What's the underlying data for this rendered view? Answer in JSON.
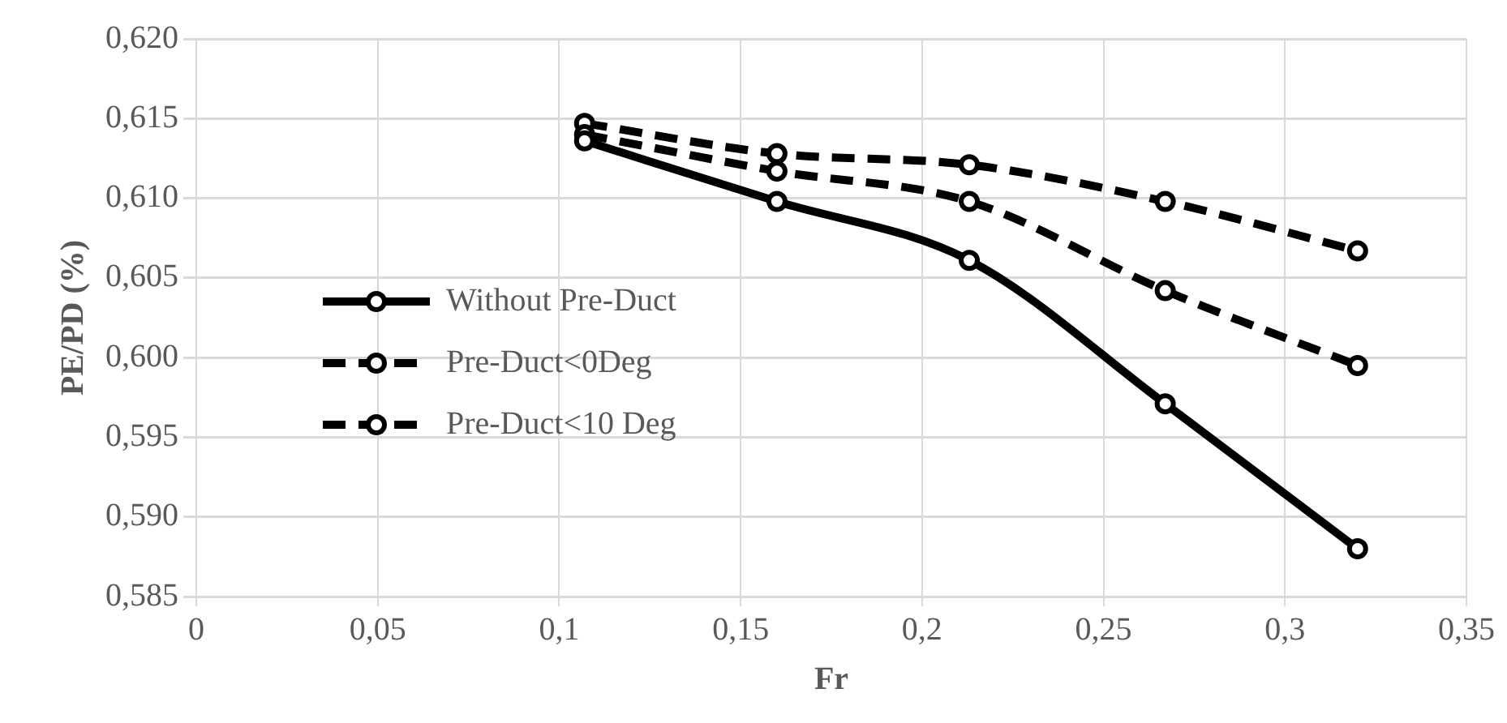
{
  "chart_data": {
    "type": "line",
    "xlabel": "Fr",
    "ylabel": "PE/PD (%)",
    "x": [
      0.107,
      0.16,
      0.213,
      0.267,
      0.32
    ],
    "series": [
      {
        "name": "Without Pre-Duct",
        "color": "#000000",
        "line_style": "solid",
        "values": [
          0.6136,
          0.6098,
          0.6061,
          0.5971,
          0.588
        ]
      },
      {
        "name": "Pre-Duct<0Deg",
        "color": "#000000",
        "line_style": "dashed",
        "values": [
          0.614,
          0.6117,
          0.6098,
          0.6042,
          0.5995
        ]
      },
      {
        "name": "Pre-Duct<10 Deg",
        "color": "#000000",
        "line_style": "dashed",
        "values": [
          0.6147,
          0.6128,
          0.6121,
          0.6098,
          0.6067
        ]
      }
    ],
    "xlim": [
      0,
      0.35
    ],
    "xticks": [
      0,
      {
        "value": 0.05,
        "label": "0,05"
      },
      {
        "value": 0.1,
        "label": "0,1"
      },
      {
        "value": 0.15,
        "label": "0,15"
      },
      {
        "value": 0.2,
        "label": "0,2"
      },
      {
        "value": 0.25,
        "label": "0,25"
      },
      {
        "value": 0.3,
        "label": "0,3"
      },
      {
        "value": 0.35,
        "label": "0,35"
      }
    ],
    "ylim": [
      0.585,
      0.62
    ],
    "yticks": [
      {
        "value": 0.585,
        "label": "0,585"
      },
      {
        "value": 0.59,
        "label": "0,590"
      },
      {
        "value": 0.595,
        "label": "0,595"
      },
      {
        "value": 0.6,
        "label": "0,600"
      },
      {
        "value": 0.605,
        "label": "0,605"
      },
      {
        "value": 0.61,
        "label": "0,610"
      },
      {
        "value": 0.615,
        "label": "0,615"
      },
      {
        "value": 0.62,
        "label": "0,620"
      }
    ],
    "grid": true,
    "legend": "left",
    "marker": "circle"
  }
}
